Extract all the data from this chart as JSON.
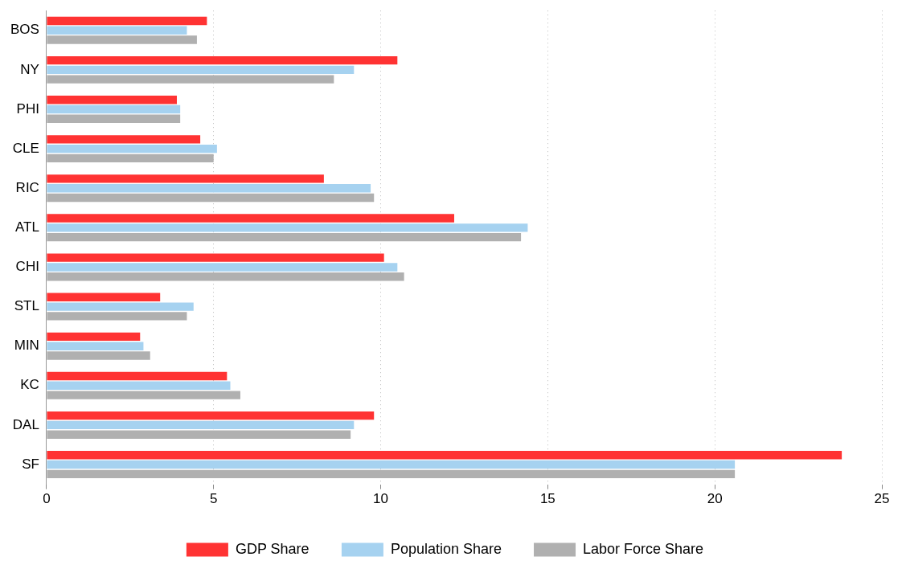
{
  "chart_data": {
    "type": "bar",
    "orientation": "horizontal",
    "categories": [
      "BOS",
      "NY",
      "PHI",
      "CLE",
      "RIC",
      "ATL",
      "CHI",
      "STL",
      "MIN",
      "KC",
      "DAL",
      "SF"
    ],
    "series": [
      {
        "name": "GDP Share",
        "color": "#ff3333",
        "values": [
          4.8,
          10.5,
          3.9,
          4.6,
          8.3,
          12.2,
          10.1,
          3.4,
          2.8,
          5.4,
          9.8,
          23.8
        ]
      },
      {
        "name": "Population Share",
        "color": "#a6d2f0",
        "values": [
          4.2,
          9.2,
          4.0,
          5.1,
          9.7,
          14.4,
          10.5,
          4.4,
          2.9,
          5.5,
          9.2,
          20.6
        ]
      },
      {
        "name": "Labor Force Share",
        "color": "#b0b0b0",
        "values": [
          4.5,
          8.6,
          4.0,
          5.0,
          9.8,
          14.2,
          10.7,
          4.2,
          3.1,
          5.8,
          9.1,
          20.6
        ]
      }
    ],
    "xlim": [
      0,
      25
    ],
    "xticks": [
      0,
      5,
      10,
      15,
      20,
      25
    ],
    "grid": "x",
    "legend": "bottom"
  }
}
